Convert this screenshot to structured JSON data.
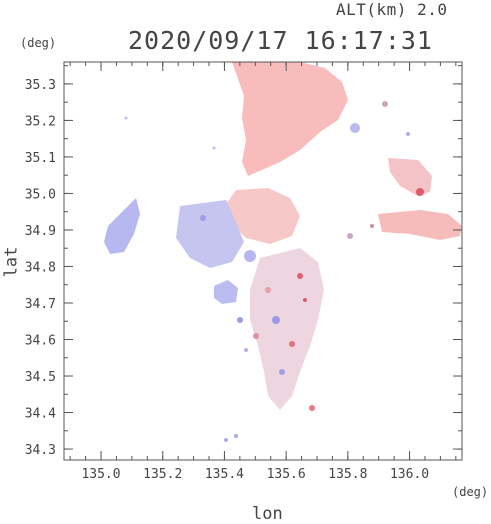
{
  "header": {
    "altitude_label": "ALT(km) 2.0",
    "timestamp": "2020/09/17 16:17:31"
  },
  "axes": {
    "x_unit": "(deg)",
    "y_unit": "(deg)",
    "xlabel": "lon",
    "ylabel": "lat",
    "x_ticks": [
      "135.0",
      "135.2",
      "135.4",
      "135.6",
      "135.8",
      "136.0"
    ],
    "y_ticks": [
      "35.3",
      "35.2",
      "35.1",
      "35.0",
      "34.9",
      "34.8",
      "34.7",
      "34.6",
      "34.5",
      "34.4",
      "34.3"
    ],
    "x_range": [
      134.88,
      136.17
    ],
    "y_range": [
      34.27,
      35.36
    ]
  },
  "colors": {
    "positive": "#f7b7b7",
    "negative": "#b9b9f2",
    "neutral": "#eeeeee",
    "frame": "#555555"
  }
}
